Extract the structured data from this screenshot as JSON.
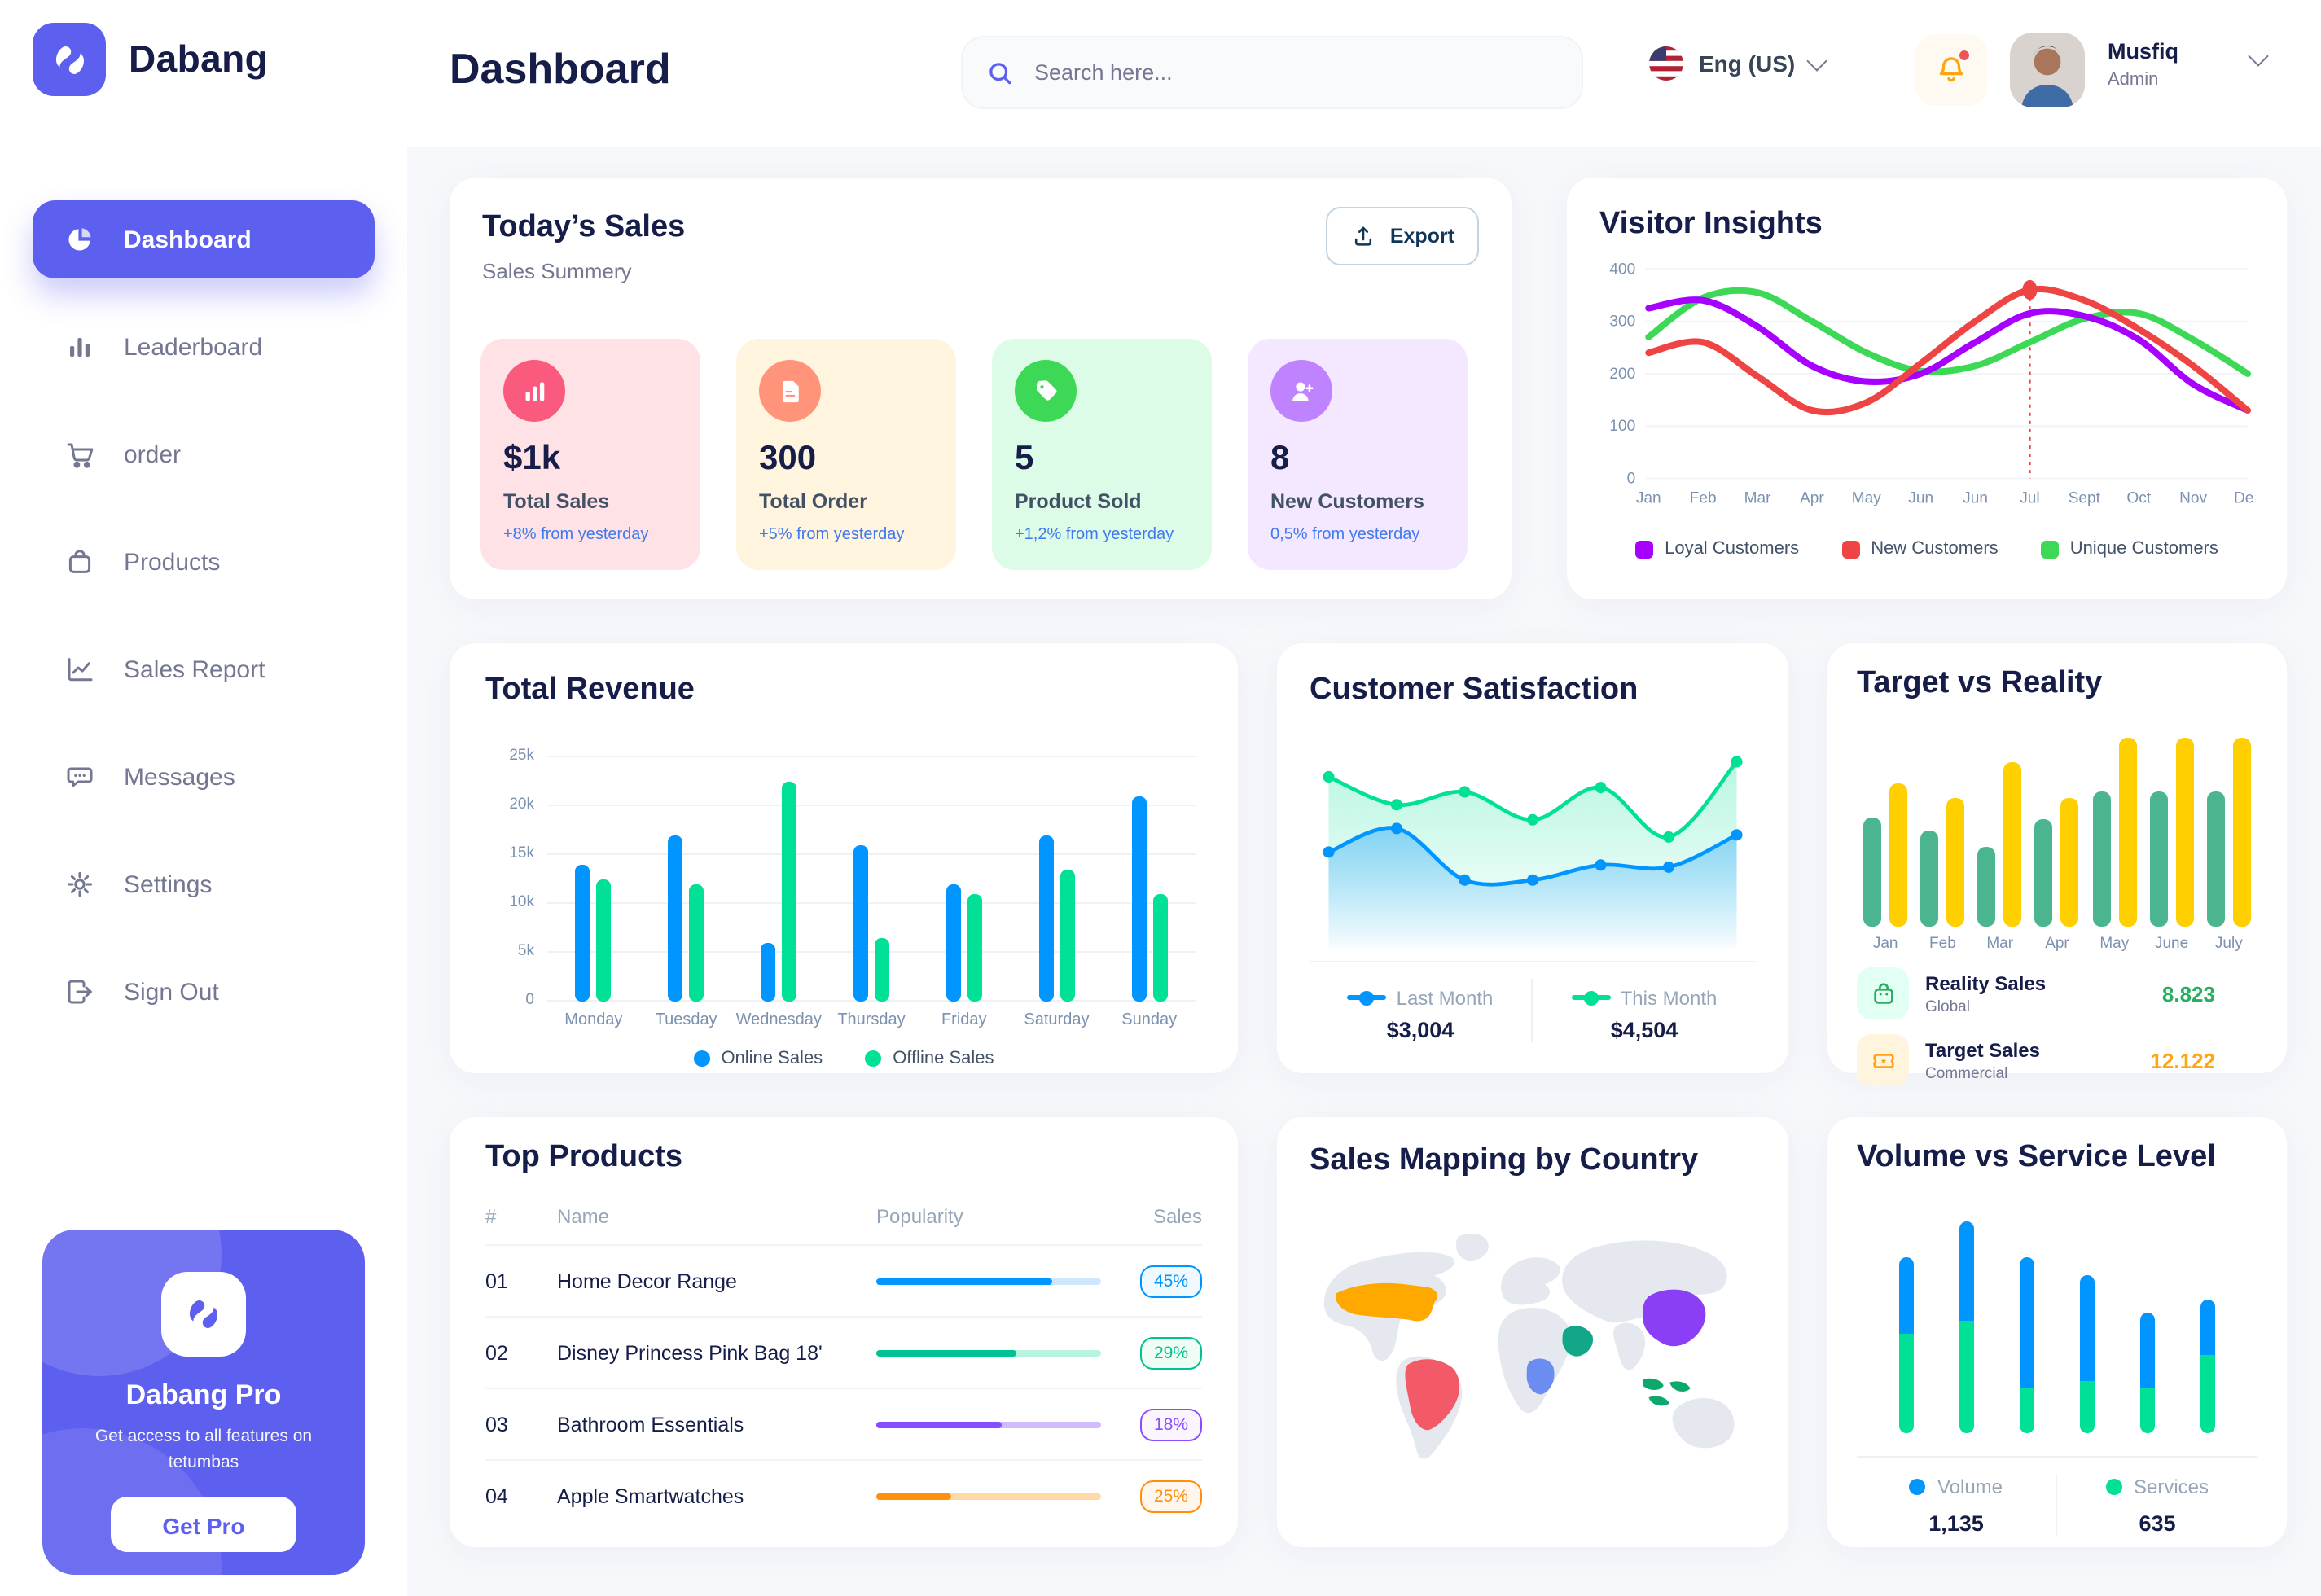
{
  "app": {
    "brand": "Dabang",
    "page_title": "Dashboard"
  },
  "header": {
    "search_placeholder": "Search here...",
    "language": "Eng (US)",
    "user": {
      "name": "Musfiq",
      "role": "Admin"
    }
  },
  "sidebar": {
    "items": [
      {
        "label": "Dashboard",
        "icon": "pie-chart",
        "active": true
      },
      {
        "label": "Leaderboard",
        "icon": "bar-chart",
        "active": false
      },
      {
        "label": "order",
        "icon": "cart",
        "active": false
      },
      {
        "label": "Products",
        "icon": "bag",
        "active": false
      },
      {
        "label": "Sales Report",
        "icon": "line-chart",
        "active": false
      },
      {
        "label": "Messages",
        "icon": "chat",
        "active": false
      },
      {
        "label": "Settings",
        "icon": "gear",
        "active": false
      },
      {
        "label": "Sign Out",
        "icon": "sign-out",
        "active": false
      }
    ],
    "pro": {
      "title": "Dabang Pro",
      "description": "Get access to all features on tetumbas",
      "cta": "Get Pro"
    }
  },
  "todays_sales": {
    "title": "Today’s Sales",
    "subtitle": "Sales Summery",
    "export_label": "Export",
    "stats": [
      {
        "value": "$1k",
        "label": "Total Sales",
        "delta": "+8% from yesterday",
        "icon": "stat-bar-chart",
        "card_bg": "#FFE2E5",
        "icon_bg": "#FA5A7D"
      },
      {
        "value": "300",
        "label": "Total Order",
        "delta": "+5% from yesterday",
        "icon": "stat-receipt",
        "card_bg": "#FFF4DE",
        "icon_bg": "#FF947A"
      },
      {
        "value": "5",
        "label": "Product Sold",
        "delta": "+1,2% from yesterday",
        "icon": "stat-tag",
        "card_bg": "#DCFCE7",
        "icon_bg": "#3CD856"
      },
      {
        "value": "8",
        "label": "New Customers",
        "delta": "0,5% from yesterday",
        "icon": "stat-person-plus",
        "card_bg": "#F3E8FF",
        "icon_bg": "#BF83FF"
      }
    ]
  },
  "chart_data": {
    "visitor_insights": {
      "type": "line",
      "title": "Visitor Insights",
      "x": [
        "Jan",
        "Feb",
        "Mar",
        "Apr",
        "May",
        "Jun",
        "Jun",
        "Jul",
        "Sept",
        "Oct",
        "Nov",
        "Des"
      ],
      "ylim": [
        0,
        400
      ],
      "yticks": [
        0,
        100,
        200,
        300,
        400
      ],
      "grid": true,
      "legend_position": "bottom",
      "series": [
        {
          "name": "Loyal Customers",
          "color": "#A700FF",
          "values": [
            325,
            340,
            290,
            215,
            185,
            200,
            260,
            315,
            310,
            265,
            180,
            130
          ]
        },
        {
          "name": "New Customers",
          "color": "#EF4444",
          "values": [
            240,
            260,
            195,
            130,
            145,
            220,
            300,
            360,
            340,
            285,
            215,
            130
          ]
        },
        {
          "name": "Unique Customers",
          "color": "#3CD856",
          "values": [
            270,
            345,
            355,
            300,
            240,
            205,
            215,
            260,
            305,
            315,
            265,
            200
          ]
        }
      ],
      "highlight": {
        "series": "New Customers",
        "x_index": 7,
        "value": 360,
        "marker_color": "#EF4444"
      }
    },
    "total_revenue": {
      "type": "bar",
      "title": "Total Revenue",
      "categories": [
        "Monday",
        "Tuesday",
        "Wednesday",
        "Thursday",
        "Friday",
        "Saturday",
        "Sunday"
      ],
      "ylim": [
        0,
        25000
      ],
      "yticks": [
        "0",
        "5k",
        "10k",
        "15k",
        "20k",
        "25k"
      ],
      "series": [
        {
          "name": "Online Sales",
          "color": "#0095FF",
          "values": [
            14000,
            17000,
            6000,
            16000,
            12000,
            17000,
            21000
          ]
        },
        {
          "name": "Offline Sales",
          "color": "#00E096",
          "values": [
            12500,
            12000,
            22500,
            6500,
            11000,
            13500,
            11000
          ]
        }
      ]
    },
    "customer_satisfaction": {
      "type": "area",
      "title": "Customer Satisfaction",
      "series": [
        {
          "name": "Last Month",
          "color": "#0095FF",
          "total": "$3,004",
          "values": [
            40,
            51,
            27,
            27,
            34,
            33,
            48
          ]
        },
        {
          "name": "This Month",
          "color": "#00E096",
          "total": "$4,504",
          "values": [
            75,
            62,
            68,
            55,
            70,
            47,
            82
          ]
        }
      ]
    },
    "target_vs_reality": {
      "type": "bar",
      "title": "Target vs Reality",
      "categories": [
        "Jan",
        "Feb",
        "Mar",
        "Apr",
        "May",
        "June",
        "July"
      ],
      "ylim": [
        0,
        15
      ],
      "series": [
        {
          "name": "Reality Sales",
          "subtitle": "Global",
          "color": "#4AB58E",
          "total": "8.823",
          "total_color": "#27AE60",
          "icon_bg": "#E2FFF3",
          "values": [
            8.5,
            7.5,
            6.2,
            8.4,
            10.5,
            10.5,
            10.5
          ]
        },
        {
          "name": "Target Sales",
          "subtitle": "Commercial",
          "color": "#FFCF00",
          "total": "12.122",
          "total_color": "#FFA412",
          "icon_bg": "#FFF4DE",
          "values": [
            11.2,
            10,
            12.8,
            10,
            14.8,
            14.8,
            14.8
          ]
        }
      ]
    },
    "top_products": {
      "type": "table",
      "title": "Top Products",
      "columns": [
        "#",
        "Name",
        "Popularity",
        "Sales"
      ],
      "rows": [
        {
          "num": "01",
          "name": "Home Decor Range",
          "popularity": 78,
          "sales": "45%",
          "color": "#0095FF",
          "track": "#CDE7FF",
          "badge_bg": "#F0F9FF"
        },
        {
          "num": "02",
          "name": "Disney Princess Pink Bag 18'",
          "popularity": 62,
          "sales": "29%",
          "color": "#00C292",
          "track": "#B9F5DE",
          "badge_bg": "#F0FDF4"
        },
        {
          "num": "03",
          "name": "Bathroom Essentials",
          "popularity": 56,
          "sales": "18%",
          "color": "#884DFF",
          "track": "#D0BBFF",
          "badge_bg": "#FAF5FF"
        },
        {
          "num": "04",
          "name": "Apple Smartwatches",
          "popularity": 33,
          "sales": "25%",
          "color": "#FF8F0D",
          "track": "#FFD9A6",
          "badge_bg": "#FFF7ED"
        }
      ]
    },
    "sales_mapping": {
      "type": "map",
      "title": "Sales Mapping by Country",
      "countries": [
        {
          "id": "united-states",
          "name": "United States",
          "color": "#FFA800"
        },
        {
          "id": "brazil",
          "name": "Brazil",
          "color": "#F25A68"
        },
        {
          "id": "saudi-arabia",
          "name": "Saudi Arabia",
          "color": "#12A789"
        },
        {
          "id": "dr-congo",
          "name": "DR Congo",
          "color": "#6B8DF2"
        },
        {
          "id": "china",
          "name": "China",
          "color": "#8A3FF6"
        },
        {
          "id": "indonesia",
          "name": "Indonesia",
          "color": "#0FA86C"
        }
      ]
    },
    "volume_vs_service": {
      "type": "bar",
      "title": "Volume vs Service Level",
      "ylim": [
        0,
        70
      ],
      "series": [
        {
          "name": "Volume",
          "color": "#0095FF",
          "total": "1,135",
          "values": [
            25,
            33,
            43,
            35,
            25,
            18
          ]
        },
        {
          "name": "Services",
          "color": "#00E096",
          "total": "635",
          "values": [
            33,
            37,
            15,
            17,
            15,
            26
          ]
        }
      ]
    }
  }
}
